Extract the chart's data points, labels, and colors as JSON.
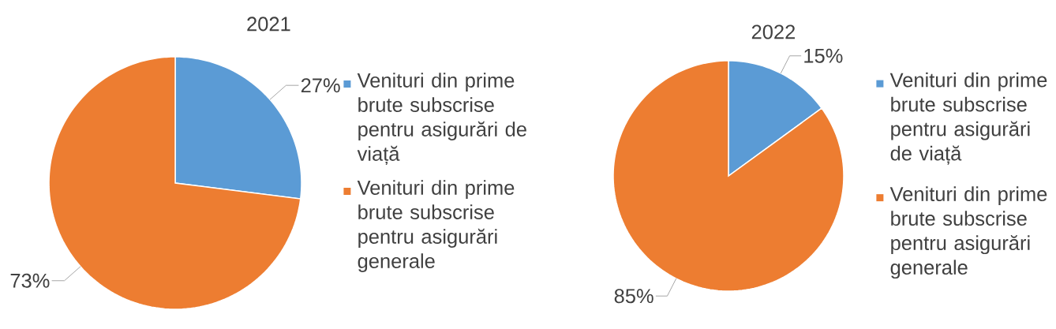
{
  "chart_data": [
    {
      "type": "pie",
      "title": "2021",
      "categories": [
        "Venituri din prime brute subscrise pentru asigurări de viață",
        "Venituri din prime brute subscrise pentru asigurări generale"
      ],
      "values": [
        27,
        73
      ],
      "value_labels": [
        "27%",
        "73%"
      ],
      "colors": [
        "#5b9bd5",
        "#ed7d31"
      ],
      "legend": "right"
    },
    {
      "type": "pie",
      "title": "2022",
      "categories": [
        "Venituri din prime brute subscrise pentru asigurări de viață",
        "Venituri din prime brute subscrise pentru asigurări generale"
      ],
      "values": [
        15,
        85
      ],
      "value_labels": [
        "15%",
        "85%"
      ],
      "colors": [
        "#5b9bd5",
        "#ed7d31"
      ],
      "legend": "right"
    }
  ]
}
